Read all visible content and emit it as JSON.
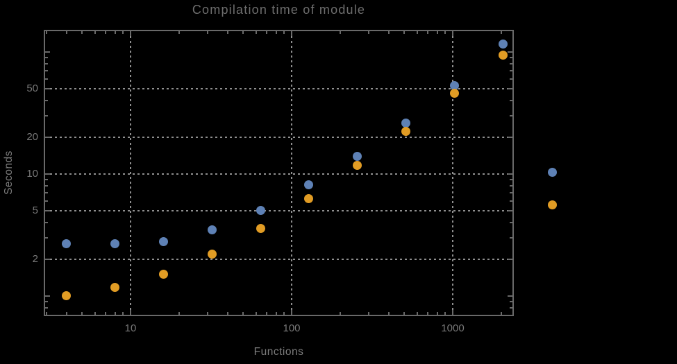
{
  "title": "Compilation time of module",
  "colors": {
    "background": "#000000",
    "series_blue": "#5e81b5",
    "series_orange": "#e19c24",
    "frame": "#696969",
    "grid": "#8f8f8f",
    "tick_label": "#787878",
    "title_text": "#6e6e6e"
  },
  "chart_data": {
    "type": "scatter",
    "title": "Compilation time of module",
    "xlabel": "Functions",
    "ylabel": "Seconds",
    "x_scale": "log",
    "y_scale": "log",
    "xlim": [
      2.9,
      2400
    ],
    "ylim": [
      0.69,
      152
    ],
    "grid": {
      "style": "dotted",
      "x_values": [
        10,
        100,
        1000
      ],
      "y_values": [
        2,
        5,
        10,
        20,
        50
      ]
    },
    "x": [
      4,
      8,
      16,
      32,
      64,
      128,
      256,
      512,
      1024,
      2048
    ],
    "series": [
      {
        "name": "series-blue",
        "color": "#5e81b5",
        "values": [
          2.7,
          2.7,
          2.8,
          3.5,
          5.0,
          8.2,
          13.9,
          26,
          53,
          116
        ]
      },
      {
        "name": "series-orange",
        "color": "#e19c24",
        "values": [
          1.0,
          1.17,
          1.5,
          2.2,
          3.6,
          6.3,
          11.7,
          22.5,
          46,
          94
        ]
      }
    ],
    "axes": {
      "x_ticks": {
        "major": [
          {
            "v": 10,
            "label": "10"
          },
          {
            "v": 100,
            "label": "100"
          },
          {
            "v": 1000,
            "label": "1000"
          }
        ],
        "minor": [
          3,
          4,
          5,
          6,
          7,
          8,
          9,
          20,
          30,
          40,
          50,
          60,
          70,
          80,
          90,
          200,
          300,
          400,
          500,
          600,
          700,
          800,
          900,
          2000
        ]
      },
      "y_ticks": {
        "major": [
          {
            "v": 100,
            "label": ""
          },
          {
            "v": 50,
            "label": "50"
          },
          {
            "v": 20,
            "label": "20"
          },
          {
            "v": 10,
            "label": "10"
          },
          {
            "v": 5,
            "label": "5"
          },
          {
            "v": 2,
            "label": "2"
          },
          {
            "v": 1,
            "label": ""
          }
        ],
        "minor": [
          0.8,
          0.9,
          3,
          4,
          6,
          7,
          8,
          9,
          30,
          40,
          60,
          70,
          80,
          90
        ]
      }
    },
    "legend_markers": [
      {
        "name": "legend-marker-blue",
        "color": "#5e81b5"
      },
      {
        "name": "legend-marker-orange",
        "color": "#e19c24"
      }
    ]
  }
}
